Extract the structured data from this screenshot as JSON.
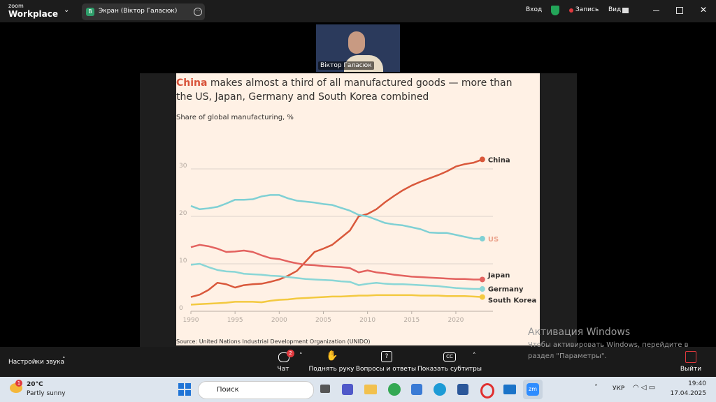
{
  "zoom": {
    "brand_top": "zoom",
    "brand": "Workplace",
    "tab_icon": "В",
    "tab": "Экран (Віктор Галасюк)",
    "signin": "Вход",
    "record": "Запись",
    "view": "Вид",
    "participant": "Віктор Галасюк",
    "audio_settings": "Настройки звука",
    "chat_badge": "2",
    "chat": "Чат",
    "raise_hand": "Поднять руку",
    "qa": "Вопросы и ответы",
    "captions": "Показать субтитры",
    "leave": "Выйти"
  },
  "watermark": {
    "title": "Активация Windows",
    "line1": "Чтобы активировать Windows, перейдите в",
    "line2": "раздел \"Параметры\"."
  },
  "taskbar": {
    "weather_badge": "1",
    "temperature": "20°C",
    "weather": "Partly sunny",
    "search": "Поиск",
    "language": "УКР",
    "time": "19:40",
    "date": "17.04.2025"
  },
  "chart_data": {
    "type": "line",
    "title_lead": "China",
    "title": "makes almost a third of all manufactured goods — more than the US, Japan, Germany and South Korea combined",
    "subtitle": "Share of global manufacturing, %",
    "source": "Source: United Nations Industrial Development Organization (UNIDO)",
    "x": [
      1990,
      1991,
      1992,
      1993,
      1994,
      1995,
      1996,
      1997,
      1998,
      1999,
      2000,
      2001,
      2002,
      2003,
      2004,
      2005,
      2006,
      2007,
      2008,
      2009,
      2010,
      2011,
      2012,
      2013,
      2014,
      2015,
      2016,
      2017,
      2018,
      2019,
      2020,
      2021,
      2022,
      2023
    ],
    "series": [
      {
        "name": "China",
        "color": "#d9583b",
        "values": [
          3,
          3.5,
          4.5,
          6,
          5.7,
          5,
          5.5,
          5.7,
          5.8,
          6.2,
          6.7,
          7.5,
          8.5,
          10.5,
          12.5,
          13.2,
          14,
          15.5,
          17,
          20,
          20.5,
          21.5,
          23,
          24.3,
          25.5,
          26.5,
          27.3,
          28,
          28.7,
          29.5,
          30.5,
          31,
          31.3,
          32
        ]
      },
      {
        "name": "US",
        "color": "#7fd0d4",
        "values": [
          22.2,
          21.5,
          21.7,
          22,
          22.7,
          23.5,
          23.5,
          23.6,
          24.2,
          24.5,
          24.5,
          23.8,
          23.3,
          23.1,
          22.9,
          22.6,
          22.4,
          21.8,
          21.2,
          20.3,
          20,
          19.3,
          18.6,
          18.3,
          18.1,
          17.7,
          17.3,
          16.6,
          16.5,
          16.5,
          16.1,
          15.7,
          15.3,
          15.3
        ]
      },
      {
        "name": "Japan",
        "color": "#e3625f",
        "values": [
          13.5,
          14,
          13.7,
          13.2,
          12.5,
          12.6,
          12.8,
          12.5,
          11.8,
          11.2,
          11,
          10.5,
          10.1,
          9.8,
          9.7,
          9.5,
          9.4,
          9.3,
          9.1,
          8.2,
          8.6,
          8.2,
          8,
          7.7,
          7.5,
          7.3,
          7.2,
          7.1,
          7,
          6.9,
          6.8,
          6.8,
          6.7,
          6.7
        ]
      },
      {
        "name": "Germany",
        "color": "#8ad6d6",
        "values": [
          9.8,
          10,
          9.3,
          8.7,
          8.4,
          8.3,
          7.9,
          7.8,
          7.7,
          7.5,
          7.4,
          7.2,
          7,
          6.8,
          6.7,
          6.6,
          6.5,
          6.3,
          6.2,
          5.5,
          5.8,
          6,
          5.8,
          5.7,
          5.7,
          5.6,
          5.5,
          5.4,
          5.3,
          5.1,
          4.9,
          4.8,
          4.7,
          4.7
        ]
      },
      {
        "name": "South Korea",
        "color": "#f3c940",
        "values": [
          1.4,
          1.5,
          1.6,
          1.7,
          1.8,
          2,
          2,
          2,
          1.9,
          2.2,
          2.4,
          2.5,
          2.7,
          2.8,
          2.9,
          3,
          3.1,
          3.1,
          3.2,
          3.3,
          3.3,
          3.4,
          3.4,
          3.4,
          3.4,
          3.4,
          3.3,
          3.3,
          3.3,
          3.2,
          3.2,
          3.2,
          3.1,
          3
        ]
      }
    ],
    "xlim": [
      1990,
      2024.2
    ],
    "xticks": [
      1990,
      1995,
      2000,
      2005,
      2010,
      2015,
      2020
    ],
    "ylim": [
      0,
      35
    ],
    "yticks": [
      0,
      10,
      20,
      30
    ],
    "grid": true
  }
}
